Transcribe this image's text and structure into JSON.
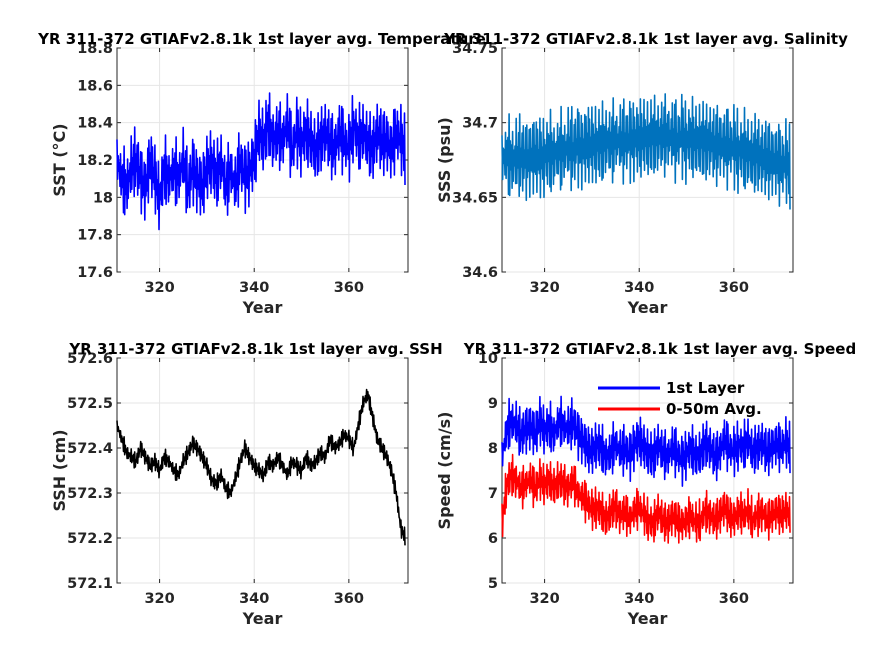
{
  "chart_data": [
    {
      "type": "line",
      "title": "YR 311-372 GTIAFv2.8.1k 1st layer avg. Temperature",
      "xlabel": "Year",
      "ylabel": "SST (°C)",
      "xlim": [
        311,
        372.5
      ],
      "ylim": [
        17.6,
        18.8
      ],
      "xticks": [
        320,
        340,
        360
      ],
      "yticks": [
        17.6,
        17.8,
        18,
        18.2,
        18.4,
        18.6,
        18.8
      ],
      "ytick_labels": [
        "17.6",
        "17.8",
        "18",
        "18.2",
        "18.4",
        "18.6",
        "18.8"
      ],
      "grid": true,
      "series": [
        {
          "color": "#0000ff",
          "x": [
            311,
            312,
            313,
            314,
            315,
            316,
            317,
            318,
            319,
            320,
            321,
            322,
            323,
            324,
            325,
            326,
            327,
            328,
            329,
            330,
            331,
            332,
            333,
            334,
            335,
            336,
            337,
            338,
            339,
            340,
            341,
            342,
            343,
            344,
            345,
            346,
            347,
            348,
            349,
            350,
            351,
            352,
            353,
            354,
            355,
            356,
            357,
            358,
            359,
            360,
            361,
            362,
            363,
            364,
            365,
            366,
            367,
            368,
            369,
            370,
            371,
            372
          ],
          "y": [
            18.2,
            18.1,
            18.05,
            18.15,
            18.2,
            18.1,
            18.05,
            18.2,
            18.1,
            18.0,
            18.15,
            18.1,
            18.15,
            18.1,
            18.2,
            18.05,
            18.15,
            18.1,
            18.05,
            18.15,
            18.2,
            18.1,
            18.2,
            18.05,
            18.15,
            18.05,
            18.2,
            18.1,
            18.15,
            18.2,
            18.35,
            18.3,
            18.4,
            18.3,
            18.35,
            18.3,
            18.4,
            18.25,
            18.35,
            18.3,
            18.35,
            18.3,
            18.25,
            18.3,
            18.35,
            18.3,
            18.25,
            18.35,
            18.3,
            18.25,
            18.4,
            18.3,
            18.35,
            18.3,
            18.25,
            18.35,
            18.3,
            18.3,
            18.25,
            18.35,
            18.3,
            18.25
          ],
          "amplitude": [
            0.2,
            0.2,
            0.2,
            0.2,
            0.2,
            0.2,
            0.2,
            0.2,
            0.2,
            0.2,
            0.2,
            0.2,
            0.2,
            0.2,
            0.2,
            0.2,
            0.2,
            0.2,
            0.2,
            0.2,
            0.2,
            0.2,
            0.2,
            0.2,
            0.2,
            0.2,
            0.2,
            0.2,
            0.2,
            0.2,
            0.2,
            0.2,
            0.2,
            0.2,
            0.2,
            0.2,
            0.2,
            0.2,
            0.2,
            0.2,
            0.2,
            0.2,
            0.2,
            0.2,
            0.2,
            0.2,
            0.2,
            0.2,
            0.2,
            0.2,
            0.2,
            0.2,
            0.2,
            0.2,
            0.2,
            0.2,
            0.2,
            0.2,
            0.2,
            0.2,
            0.2,
            0.2
          ]
        }
      ]
    },
    {
      "type": "line",
      "title": "YR 311-372 GTIAFv2.8.1k 1st layer avg. Salinity",
      "xlabel": "Year",
      "ylabel": "SSS (psu)",
      "xlim": [
        311,
        372.5
      ],
      "ylim": [
        34.6,
        34.75
      ],
      "xticks": [
        320,
        340,
        360
      ],
      "yticks": [
        34.6,
        34.65,
        34.7,
        34.75
      ],
      "ytick_labels": [
        "34.6",
        "34.65",
        "34.7",
        "34.75"
      ],
      "grid": true,
      "series": [
        {
          "color": "#0072bd",
          "x": [
            311,
            312,
            313,
            314,
            315,
            316,
            317,
            318,
            319,
            320,
            321,
            322,
            323,
            324,
            325,
            326,
            327,
            328,
            329,
            330,
            331,
            332,
            333,
            334,
            335,
            336,
            337,
            338,
            339,
            340,
            341,
            342,
            343,
            344,
            345,
            346,
            347,
            348,
            349,
            350,
            351,
            352,
            353,
            354,
            355,
            356,
            357,
            358,
            359,
            360,
            361,
            362,
            363,
            364,
            365,
            366,
            367,
            368,
            369,
            370,
            371,
            372
          ],
          "y": [
            34.675,
            34.678,
            34.674,
            34.676,
            34.678,
            34.675,
            34.677,
            34.679,
            34.676,
            34.678,
            34.68,
            34.678,
            34.682,
            34.68,
            34.684,
            34.682,
            34.685,
            34.683,
            34.686,
            34.684,
            34.686,
            34.685,
            34.688,
            34.686,
            34.689,
            34.687,
            34.689,
            34.688,
            34.69,
            34.689,
            34.69,
            34.689,
            34.691,
            34.69,
            34.692,
            34.691,
            34.69,
            34.689,
            34.691,
            34.688,
            34.69,
            34.687,
            34.689,
            34.686,
            34.688,
            34.685,
            34.686,
            34.684,
            34.685,
            34.683,
            34.682,
            34.681,
            34.68,
            34.678,
            34.679,
            34.676,
            34.677,
            34.674,
            34.675,
            34.672,
            34.673,
            34.67
          ],
          "amplitude": [
            0.03,
            0.03,
            0.03,
            0.03,
            0.03,
            0.03,
            0.03,
            0.03,
            0.03,
            0.03,
            0.03,
            0.03,
            0.03,
            0.03,
            0.03,
            0.03,
            0.03,
            0.03,
            0.03,
            0.03,
            0.03,
            0.03,
            0.03,
            0.03,
            0.03,
            0.03,
            0.03,
            0.03,
            0.03,
            0.03,
            0.03,
            0.03,
            0.03,
            0.03,
            0.03,
            0.03,
            0.03,
            0.03,
            0.03,
            0.03,
            0.03,
            0.03,
            0.03,
            0.03,
            0.03,
            0.03,
            0.03,
            0.03,
            0.03,
            0.03,
            0.03,
            0.03,
            0.03,
            0.03,
            0.03,
            0.03,
            0.03,
            0.03,
            0.03,
            0.03,
            0.03,
            0.03
          ]
        }
      ]
    },
    {
      "type": "line",
      "title": "YR 311-372 GTIAFv2.8.1k 1st layer avg. SSH",
      "xlabel": "Year",
      "ylabel": "SSH (cm)",
      "xlim": [
        311,
        372.5
      ],
      "ylim": [
        572.1,
        572.6
      ],
      "xticks": [
        320,
        340,
        360
      ],
      "yticks": [
        572.1,
        572.2,
        572.3,
        572.4,
        572.5,
        572.6
      ],
      "ytick_labels": [
        "572.1",
        "572.2",
        "572.3",
        "572.4",
        "572.5",
        "572.6"
      ],
      "grid": true,
      "series": [
        {
          "color": "#000000",
          "x": [
            311,
            312,
            313,
            314,
            315,
            316,
            317,
            318,
            319,
            320,
            321,
            322,
            323,
            324,
            325,
            326,
            327,
            328,
            329,
            330,
            331,
            332,
            333,
            334,
            335,
            336,
            337,
            338,
            339,
            340,
            341,
            342,
            343,
            344,
            345,
            346,
            347,
            348,
            349,
            350,
            351,
            352,
            353,
            354,
            355,
            356,
            357,
            358,
            359,
            360,
            361,
            362,
            363,
            364,
            365,
            366,
            367,
            368,
            369,
            370,
            371,
            372
          ],
          "y": [
            572.45,
            572.42,
            572.39,
            572.38,
            572.37,
            572.4,
            572.38,
            572.36,
            572.37,
            572.35,
            572.38,
            572.37,
            572.35,
            572.34,
            572.37,
            572.39,
            572.41,
            572.4,
            572.38,
            572.36,
            572.33,
            572.32,
            572.34,
            572.31,
            572.3,
            572.33,
            572.37,
            572.4,
            572.38,
            572.36,
            572.35,
            572.34,
            572.37,
            572.36,
            572.38,
            572.36,
            572.34,
            572.37,
            572.36,
            572.35,
            572.38,
            572.36,
            572.37,
            572.39,
            572.38,
            572.42,
            572.4,
            572.41,
            572.43,
            572.42,
            572.4,
            572.45,
            572.5,
            572.52,
            572.47,
            572.42,
            572.4,
            572.38,
            572.35,
            572.3,
            572.22,
            572.2
          ],
          "amplitude": [
            0.02,
            0.02,
            0.02,
            0.02,
            0.02,
            0.02,
            0.02,
            0.02,
            0.02,
            0.02,
            0.02,
            0.02,
            0.02,
            0.02,
            0.02,
            0.02,
            0.02,
            0.02,
            0.02,
            0.02,
            0.02,
            0.02,
            0.02,
            0.02,
            0.02,
            0.02,
            0.02,
            0.02,
            0.02,
            0.02,
            0.02,
            0.02,
            0.02,
            0.02,
            0.02,
            0.02,
            0.02,
            0.02,
            0.02,
            0.02,
            0.02,
            0.02,
            0.02,
            0.02,
            0.02,
            0.02,
            0.02,
            0.02,
            0.02,
            0.02,
            0.02,
            0.02,
            0.02,
            0.02,
            0.02,
            0.02,
            0.02,
            0.02,
            0.02,
            0.02,
            0.02,
            0.02
          ]
        }
      ]
    },
    {
      "type": "line",
      "title": "YR 311-372 GTIAFv2.8.1k 1st layer avg. Speed",
      "xlabel": "Year",
      "ylabel": "Speed (cm/s)",
      "xlim": [
        311,
        372.5
      ],
      "ylim": [
        5,
        10
      ],
      "xticks": [
        320,
        340,
        360
      ],
      "yticks": [
        5,
        6,
        7,
        8,
        9,
        10
      ],
      "ytick_labels": [
        "5",
        "6",
        "7",
        "8",
        "9",
        "10"
      ],
      "grid": true,
      "legend": "top-right",
      "series": [
        {
          "name": "1st Layer",
          "color": "#0000ff",
          "x": [
            311,
            312,
            313,
            314,
            315,
            316,
            317,
            318,
            319,
            320,
            321,
            322,
            323,
            324,
            325,
            326,
            327,
            328,
            329,
            330,
            331,
            332,
            333,
            334,
            335,
            336,
            337,
            338,
            339,
            340,
            341,
            342,
            343,
            344,
            345,
            346,
            347,
            348,
            349,
            350,
            351,
            352,
            353,
            354,
            355,
            356,
            357,
            358,
            359,
            360,
            361,
            362,
            363,
            364,
            365,
            366,
            367,
            368,
            369,
            370,
            371,
            372
          ],
          "y": [
            7.8,
            8.4,
            8.6,
            8.5,
            8.3,
            8.4,
            8.5,
            8.3,
            8.6,
            8.4,
            8.5,
            8.3,
            8.6,
            8.5,
            8.4,
            8.6,
            8.3,
            8.2,
            8.0,
            7.9,
            8.1,
            8.0,
            7.8,
            7.9,
            8.1,
            7.9,
            8.0,
            7.8,
            8.1,
            8.2,
            8.0,
            7.9,
            7.8,
            8.1,
            7.9,
            7.8,
            8.0,
            7.9,
            7.7,
            7.9,
            8.0,
            7.8,
            7.9,
            8.1,
            8.0,
            7.8,
            7.9,
            8.2,
            8.0,
            7.9,
            8.1,
            8.0,
            8.2,
            7.9,
            8.0,
            8.1,
            7.9,
            8.0,
            8.1,
            8.0,
            8.1,
            8.0
          ],
          "amplitude": [
            0.6,
            0.6,
            0.6,
            0.6,
            0.6,
            0.6,
            0.6,
            0.6,
            0.6,
            0.6,
            0.6,
            0.6,
            0.6,
            0.6,
            0.6,
            0.6,
            0.6,
            0.6,
            0.6,
            0.6,
            0.6,
            0.6,
            0.6,
            0.6,
            0.6,
            0.6,
            0.6,
            0.6,
            0.6,
            0.6,
            0.6,
            0.6,
            0.6,
            0.6,
            0.6,
            0.6,
            0.6,
            0.6,
            0.6,
            0.6,
            0.6,
            0.6,
            0.6,
            0.6,
            0.6,
            0.6,
            0.6,
            0.6,
            0.6,
            0.6,
            0.6,
            0.6,
            0.6,
            0.6,
            0.6,
            0.6,
            0.6,
            0.6,
            0.6,
            0.6,
            0.6,
            0.6
          ]
        },
        {
          "name": "0-50m Avg.",
          "color": "#ff0000",
          "x": [
            311,
            312,
            313,
            314,
            315,
            316,
            317,
            318,
            319,
            320,
            321,
            322,
            323,
            324,
            325,
            326,
            327,
            328,
            329,
            330,
            331,
            332,
            333,
            334,
            335,
            336,
            337,
            338,
            339,
            340,
            341,
            342,
            343,
            344,
            345,
            346,
            347,
            348,
            349,
            350,
            351,
            352,
            353,
            354,
            355,
            356,
            357,
            358,
            359,
            360,
            361,
            362,
            363,
            364,
            365,
            366,
            367,
            368,
            369,
            370,
            371,
            372
          ],
          "y": [
            6.3,
            7.2,
            7.4,
            7.3,
            7.1,
            7.2,
            7.3,
            7.1,
            7.3,
            7.2,
            7.3,
            7.1,
            7.3,
            7.2,
            7.1,
            7.3,
            7.0,
            6.9,
            6.8,
            6.6,
            6.7,
            6.6,
            6.4,
            6.6,
            6.7,
            6.5,
            6.6,
            6.4,
            6.6,
            6.7,
            6.5,
            6.4,
            6.3,
            6.6,
            6.4,
            6.3,
            6.5,
            6.4,
            6.3,
            6.4,
            6.5,
            6.3,
            6.4,
            6.6,
            6.5,
            6.4,
            6.5,
            6.7,
            6.5,
            6.4,
            6.6,
            6.5,
            6.6,
            6.4,
            6.5,
            6.6,
            6.4,
            6.5,
            6.6,
            6.5,
            6.6,
            6.5
          ],
          "amplitude": [
            0.5,
            0.5,
            0.5,
            0.5,
            0.5,
            0.5,
            0.5,
            0.5,
            0.5,
            0.5,
            0.5,
            0.5,
            0.5,
            0.5,
            0.5,
            0.5,
            0.5,
            0.5,
            0.5,
            0.5,
            0.5,
            0.5,
            0.5,
            0.5,
            0.5,
            0.5,
            0.5,
            0.5,
            0.5,
            0.5,
            0.5,
            0.5,
            0.5,
            0.5,
            0.5,
            0.5,
            0.5,
            0.5,
            0.5,
            0.5,
            0.5,
            0.5,
            0.5,
            0.5,
            0.5,
            0.5,
            0.5,
            0.5,
            0.5,
            0.5,
            0.5,
            0.5,
            0.5,
            0.5,
            0.5,
            0.5,
            0.5,
            0.5,
            0.5,
            0.5,
            0.5,
            0.5
          ]
        }
      ]
    }
  ]
}
